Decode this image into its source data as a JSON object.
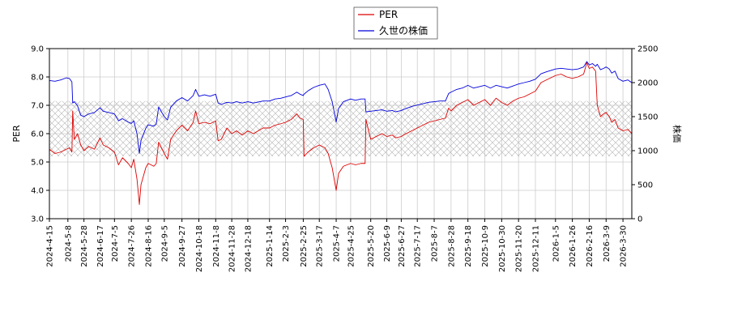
{
  "chart_data": {
    "type": "line",
    "legend": {
      "placement": "top-center",
      "entries": [
        "PER",
        "久世の株価"
      ]
    },
    "grid": true,
    "band": {
      "axis": "per",
      "range": [
        5.2,
        7.15
      ],
      "style": "cross-hatch"
    },
    "left_axis": {
      "label": "PER",
      "ylim": [
        3.0,
        9.0
      ],
      "ticks": [
        "3.0",
        "4.0",
        "5.0",
        "6.0",
        "7.0",
        "8.0",
        "9.0"
      ]
    },
    "right_axis": {
      "label": "株価",
      "ylim": [
        0,
        2500
      ],
      "ticks": [
        "0",
        "500",
        "1000",
        "1500",
        "2000",
        "2500"
      ]
    },
    "x_axis": {
      "range": [
        "2024-04-15",
        "2026-04-10"
      ],
      "ticks": [
        "2024-4-15",
        "2024-5-8",
        "2024-5-28",
        "2024-6-17",
        "2024-7-5",
        "2024-7-26",
        "2024-8-16",
        "2024-9-5",
        "2024-9-27",
        "2024-10-18",
        "2024-11-8",
        "2024-11-28",
        "2024-12-18",
        "2025-1-14",
        "2025-2-3",
        "2025-2-25",
        "2025-3-17",
        "2025-4-7",
        "2025-4-25",
        "2025-5-20",
        "2025-6-9",
        "2025-6-27",
        "2025-7-17",
        "2025-8-7",
        "2025-8-28",
        "2025-9-18",
        "2025-10-9",
        "2025-10-30",
        "2025-11-20",
        "2025-12-11",
        "2026-1-5",
        "2026-1-26",
        "2026-2-16",
        "2026-3-9",
        "2026-3-30"
      ]
    },
    "series": [
      {
        "name": "PER",
        "color": "#dd0000",
        "axis": "left",
        "points": [
          [
            "2024-04-15",
            5.45
          ],
          [
            "2024-04-22",
            5.3
          ],
          [
            "2024-04-29",
            5.35
          ],
          [
            "2024-05-06",
            5.45
          ],
          [
            "2024-05-10",
            5.5
          ],
          [
            "2024-05-13",
            5.35
          ],
          [
            "2024-05-14",
            6.8
          ],
          [
            "2024-05-16",
            5.8
          ],
          [
            "2024-05-20",
            6.0
          ],
          [
            "2024-05-24",
            5.6
          ],
          [
            "2024-05-28",
            5.4
          ],
          [
            "2024-06-03",
            5.55
          ],
          [
            "2024-06-10",
            5.45
          ],
          [
            "2024-06-17",
            5.85
          ],
          [
            "2024-06-21",
            5.6
          ],
          [
            "2024-06-28",
            5.5
          ],
          [
            "2024-07-05",
            5.35
          ],
          [
            "2024-07-10",
            4.9
          ],
          [
            "2024-07-15",
            5.15
          ],
          [
            "2024-07-22",
            4.95
          ],
          [
            "2024-07-26",
            4.8
          ],
          [
            "2024-07-29",
            5.1
          ],
          [
            "2024-08-02",
            4.4
          ],
          [
            "2024-08-05",
            3.5
          ],
          [
            "2024-08-07",
            4.2
          ],
          [
            "2024-08-13",
            4.8
          ],
          [
            "2024-08-16",
            4.95
          ],
          [
            "2024-08-23",
            4.85
          ],
          [
            "2024-08-26",
            4.95
          ],
          [
            "2024-08-29",
            5.7
          ],
          [
            "2024-09-05",
            5.3
          ],
          [
            "2024-09-09",
            5.1
          ],
          [
            "2024-09-13",
            5.8
          ],
          [
            "2024-09-20",
            6.1
          ],
          [
            "2024-09-27",
            6.3
          ],
          [
            "2024-10-04",
            6.1
          ],
          [
            "2024-10-11",
            6.4
          ],
          [
            "2024-10-14",
            6.8
          ],
          [
            "2024-10-18",
            6.35
          ],
          [
            "2024-10-25",
            6.4
          ],
          [
            "2024-11-01",
            6.35
          ],
          [
            "2024-11-08",
            6.45
          ],
          [
            "2024-11-11",
            5.75
          ],
          [
            "2024-11-15",
            5.8
          ],
          [
            "2024-11-22",
            6.2
          ],
          [
            "2024-11-28",
            6.0
          ],
          [
            "2024-12-04",
            6.1
          ],
          [
            "2024-12-11",
            5.95
          ],
          [
            "2024-12-18",
            6.1
          ],
          [
            "2024-12-25",
            6.0
          ],
          [
            "2025-01-06",
            6.2
          ],
          [
            "2025-01-14",
            6.2
          ],
          [
            "2025-01-21",
            6.3
          ],
          [
            "2025-01-28",
            6.35
          ],
          [
            "2025-02-03",
            6.4
          ],
          [
            "2025-02-10",
            6.5
          ],
          [
            "2025-02-17",
            6.7
          ],
          [
            "2025-02-21",
            6.55
          ],
          [
            "2025-02-25",
            6.5
          ],
          [
            "2025-02-26",
            5.2
          ],
          [
            "2025-03-03",
            5.35
          ],
          [
            "2025-03-10",
            5.5
          ],
          [
            "2025-03-17",
            5.6
          ],
          [
            "2025-03-24",
            5.5
          ],
          [
            "2025-03-28",
            5.3
          ],
          [
            "2025-04-02",
            4.8
          ],
          [
            "2025-04-07",
            4.0
          ],
          [
            "2025-04-10",
            4.6
          ],
          [
            "2025-04-16",
            4.85
          ],
          [
            "2025-04-25",
            4.95
          ],
          [
            "2025-05-01",
            4.9
          ],
          [
            "2025-05-08",
            4.95
          ],
          [
            "2025-05-13",
            4.95
          ],
          [
            "2025-05-14",
            6.5
          ],
          [
            "2025-05-20",
            5.8
          ],
          [
            "2025-05-27",
            5.9
          ],
          [
            "2025-06-03",
            6.0
          ],
          [
            "2025-06-09",
            5.9
          ],
          [
            "2025-06-16",
            5.95
          ],
          [
            "2025-06-20",
            5.85
          ],
          [
            "2025-06-27",
            5.9
          ],
          [
            "2025-07-03",
            6.0
          ],
          [
            "2025-07-10",
            6.1
          ],
          [
            "2025-07-17",
            6.2
          ],
          [
            "2025-07-24",
            6.3
          ],
          [
            "2025-07-31",
            6.4
          ],
          [
            "2025-08-07",
            6.45
          ],
          [
            "2025-08-14",
            6.5
          ],
          [
            "2025-08-21",
            6.55
          ],
          [
            "2025-08-25",
            6.9
          ],
          [
            "2025-08-28",
            6.8
          ],
          [
            "2025-09-04",
            7.0
          ],
          [
            "2025-09-11",
            7.1
          ],
          [
            "2025-09-18",
            7.2
          ],
          [
            "2025-09-25",
            7.0
          ],
          [
            "2025-10-02",
            7.1
          ],
          [
            "2025-10-09",
            7.2
          ],
          [
            "2025-10-16",
            7.0
          ],
          [
            "2025-10-23",
            7.25
          ],
          [
            "2025-10-30",
            7.1
          ],
          [
            "2025-11-06",
            7.0
          ],
          [
            "2025-11-13",
            7.15
          ],
          [
            "2025-11-20",
            7.25
          ],
          [
            "2025-11-27",
            7.3
          ],
          [
            "2025-12-04",
            7.4
          ],
          [
            "2025-12-11",
            7.5
          ],
          [
            "2025-12-18",
            7.8
          ],
          [
            "2025-12-25",
            7.9
          ],
          [
            "2026-01-05",
            8.05
          ],
          [
            "2026-01-12",
            8.1
          ],
          [
            "2026-01-19",
            8.0
          ],
          [
            "2026-01-26",
            7.95
          ],
          [
            "2026-02-02",
            8.0
          ],
          [
            "2026-02-09",
            8.1
          ],
          [
            "2026-02-13",
            8.5
          ],
          [
            "2026-02-16",
            8.3
          ],
          [
            "2026-02-20",
            8.35
          ],
          [
            "2026-02-24",
            8.2
          ],
          [
            "2026-02-26",
            7.0
          ],
          [
            "2026-03-02",
            6.6
          ],
          [
            "2026-03-06",
            6.7
          ],
          [
            "2026-03-09",
            6.75
          ],
          [
            "2026-03-13",
            6.6
          ],
          [
            "2026-03-16",
            6.4
          ],
          [
            "2026-03-20",
            6.5
          ],
          [
            "2026-03-24",
            6.2
          ],
          [
            "2026-03-30",
            6.1
          ],
          [
            "2026-04-05",
            6.15
          ],
          [
            "2026-04-10",
            6.0
          ]
        ]
      },
      {
        "name": "久世の株価",
        "color": "#0000dd",
        "axis": "right",
        "points": [
          [
            "2024-04-15",
            2030
          ],
          [
            "2024-04-22",
            2020
          ],
          [
            "2024-04-29",
            2040
          ],
          [
            "2024-05-06",
            2070
          ],
          [
            "2024-05-10",
            2060
          ],
          [
            "2024-05-13",
            2010
          ],
          [
            "2024-05-14",
            1700
          ],
          [
            "2024-05-16",
            1720
          ],
          [
            "2024-05-20",
            1660
          ],
          [
            "2024-05-24",
            1520
          ],
          [
            "2024-05-28",
            1500
          ],
          [
            "2024-06-03",
            1540
          ],
          [
            "2024-06-10",
            1560
          ],
          [
            "2024-06-17",
            1630
          ],
          [
            "2024-06-21",
            1580
          ],
          [
            "2024-06-28",
            1560
          ],
          [
            "2024-07-05",
            1540
          ],
          [
            "2024-07-10",
            1440
          ],
          [
            "2024-07-15",
            1470
          ],
          [
            "2024-07-22",
            1420
          ],
          [
            "2024-07-26",
            1400
          ],
          [
            "2024-07-29",
            1440
          ],
          [
            "2024-08-02",
            1250
          ],
          [
            "2024-08-05",
            960
          ],
          [
            "2024-08-07",
            1150
          ],
          [
            "2024-08-13",
            1330
          ],
          [
            "2024-08-16",
            1380
          ],
          [
            "2024-08-23",
            1360
          ],
          [
            "2024-08-26",
            1390
          ],
          [
            "2024-08-29",
            1640
          ],
          [
            "2024-09-05",
            1500
          ],
          [
            "2024-09-09",
            1450
          ],
          [
            "2024-09-13",
            1640
          ],
          [
            "2024-09-20",
            1730
          ],
          [
            "2024-09-27",
            1780
          ],
          [
            "2024-10-04",
            1730
          ],
          [
            "2024-10-11",
            1810
          ],
          [
            "2024-10-14",
            1900
          ],
          [
            "2024-10-18",
            1800
          ],
          [
            "2024-10-25",
            1820
          ],
          [
            "2024-11-01",
            1800
          ],
          [
            "2024-11-08",
            1830
          ],
          [
            "2024-11-11",
            1700
          ],
          [
            "2024-11-15",
            1680
          ],
          [
            "2024-11-22",
            1710
          ],
          [
            "2024-11-28",
            1700
          ],
          [
            "2024-12-04",
            1720
          ],
          [
            "2024-12-11",
            1700
          ],
          [
            "2024-12-18",
            1720
          ],
          [
            "2024-12-25",
            1700
          ],
          [
            "2025-01-06",
            1730
          ],
          [
            "2025-01-14",
            1730
          ],
          [
            "2025-01-21",
            1760
          ],
          [
            "2025-01-28",
            1770
          ],
          [
            "2025-02-03",
            1790
          ],
          [
            "2025-02-10",
            1810
          ],
          [
            "2025-02-17",
            1860
          ],
          [
            "2025-02-21",
            1830
          ],
          [
            "2025-02-25",
            1810
          ],
          [
            "2025-02-26",
            1830
          ],
          [
            "2025-03-03",
            1880
          ],
          [
            "2025-03-10",
            1930
          ],
          [
            "2025-03-17",
            1960
          ],
          [
            "2025-03-24",
            1980
          ],
          [
            "2025-03-28",
            1900
          ],
          [
            "2025-04-02",
            1720
          ],
          [
            "2025-04-07",
            1420
          ],
          [
            "2025-04-10",
            1620
          ],
          [
            "2025-04-16",
            1720
          ],
          [
            "2025-04-25",
            1760
          ],
          [
            "2025-05-01",
            1740
          ],
          [
            "2025-05-08",
            1760
          ],
          [
            "2025-05-13",
            1760
          ],
          [
            "2025-05-14",
            1570
          ],
          [
            "2025-05-20",
            1580
          ],
          [
            "2025-05-27",
            1590
          ],
          [
            "2025-06-03",
            1600
          ],
          [
            "2025-06-09",
            1580
          ],
          [
            "2025-06-16",
            1590
          ],
          [
            "2025-06-20",
            1570
          ],
          [
            "2025-06-27",
            1590
          ],
          [
            "2025-07-03",
            1620
          ],
          [
            "2025-07-10",
            1650
          ],
          [
            "2025-07-17",
            1670
          ],
          [
            "2025-07-24",
            1690
          ],
          [
            "2025-07-31",
            1710
          ],
          [
            "2025-08-07",
            1720
          ],
          [
            "2025-08-14",
            1730
          ],
          [
            "2025-08-21",
            1730
          ],
          [
            "2025-08-25",
            1840
          ],
          [
            "2025-08-28",
            1860
          ],
          [
            "2025-09-04",
            1900
          ],
          [
            "2025-09-11",
            1920
          ],
          [
            "2025-09-18",
            1960
          ],
          [
            "2025-09-25",
            1920
          ],
          [
            "2025-10-02",
            1940
          ],
          [
            "2025-10-09",
            1960
          ],
          [
            "2025-10-16",
            1920
          ],
          [
            "2025-10-23",
            1960
          ],
          [
            "2025-10-30",
            1940
          ],
          [
            "2025-11-06",
            1920
          ],
          [
            "2025-11-13",
            1950
          ],
          [
            "2025-11-20",
            1980
          ],
          [
            "2025-11-27",
            2000
          ],
          [
            "2025-12-04",
            2020
          ],
          [
            "2025-12-11",
            2050
          ],
          [
            "2025-12-18",
            2130
          ],
          [
            "2025-12-25",
            2160
          ],
          [
            "2026-01-05",
            2200
          ],
          [
            "2026-01-12",
            2210
          ],
          [
            "2026-01-19",
            2200
          ],
          [
            "2026-01-26",
            2190
          ],
          [
            "2026-02-02",
            2200
          ],
          [
            "2026-02-09",
            2230
          ],
          [
            "2026-02-13",
            2310
          ],
          [
            "2026-02-16",
            2260
          ],
          [
            "2026-02-20",
            2280
          ],
          [
            "2026-02-24",
            2240
          ],
          [
            "2026-02-26",
            2270
          ],
          [
            "2026-03-02",
            2190
          ],
          [
            "2026-03-06",
            2210
          ],
          [
            "2026-03-09",
            2230
          ],
          [
            "2026-03-13",
            2200
          ],
          [
            "2026-03-16",
            2140
          ],
          [
            "2026-03-20",
            2170
          ],
          [
            "2026-03-24",
            2060
          ],
          [
            "2026-03-30",
            2020
          ],
          [
            "2026-04-05",
            2040
          ],
          [
            "2026-04-10",
            2000
          ]
        ]
      }
    ]
  }
}
